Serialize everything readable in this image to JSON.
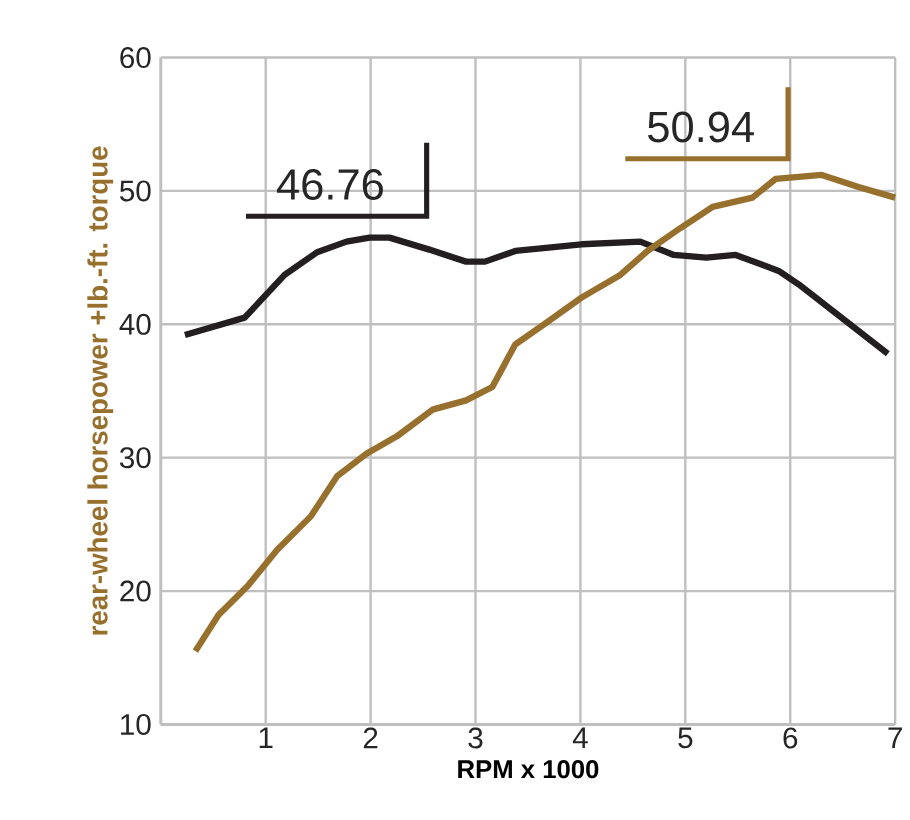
{
  "chart_data": {
    "type": "line",
    "xlabel": "RPM x 1000",
    "ylabel": "rear-wheel horsepower +lb.-ft. torque",
    "xlim": [
      0,
      7
    ],
    "ylim": [
      10,
      60
    ],
    "xticks": [
      1,
      2,
      3,
      4,
      5,
      6,
      7
    ],
    "yticks": [
      10,
      20,
      30,
      40,
      50,
      60
    ],
    "grid": true,
    "line_style": "solid",
    "marker": "none",
    "series": [
      {
        "color": "#231f20",
        "x": [
          0.23,
          0.8,
          1.18,
          1.49,
          1.77,
          1.99,
          2.18,
          2.56,
          2.91,
          3.09,
          3.38,
          4.01,
          4.57,
          4.89,
          5.2,
          5.48,
          5.89,
          6.08,
          6.93
        ],
        "values": [
          39.2,
          40.5,
          43.7,
          45.4,
          46.2,
          46.5,
          46.5,
          45.6,
          44.7,
          44.7,
          45.5,
          46.0,
          46.2,
          45.2,
          45.0,
          45.2,
          44.0,
          43.0,
          37.8
        ]
      },
      {
        "color": "#98702e",
        "x": [
          0.33,
          0.55,
          0.83,
          1.11,
          1.43,
          1.68,
          1.96,
          2.25,
          2.59,
          2.91,
          3.16,
          3.38,
          3.69,
          4.01,
          4.38,
          4.64,
          4.95,
          5.26,
          5.64,
          5.86,
          6.3,
          6.65,
          7.0
        ],
        "values": [
          15.5,
          18.2,
          20.4,
          23.1,
          25.6,
          28.6,
          30.3,
          31.6,
          33.6,
          34.3,
          35.3,
          38.5,
          40.2,
          42.0,
          43.7,
          45.5,
          47.2,
          48.8,
          49.5,
          50.9,
          51.2,
          50.3,
          49.5
        ]
      }
    ],
    "annotations": [
      {
        "text": "46.76",
        "x": 2.05,
        "y": 46.76
      },
      {
        "text": "50.94",
        "x": 6.0,
        "y": 50.94
      }
    ]
  }
}
